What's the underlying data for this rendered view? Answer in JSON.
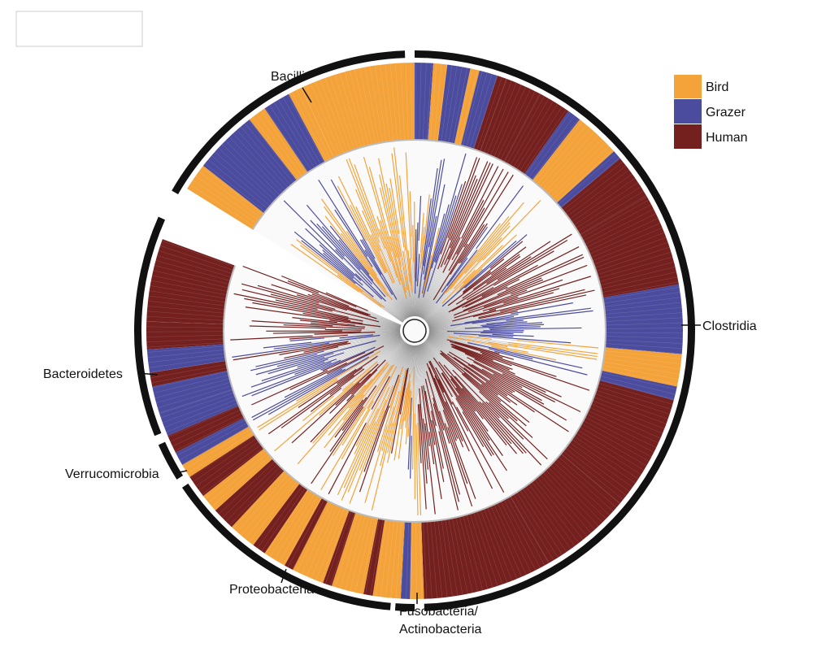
{
  "colors": {
    "bird": "#f4a33b",
    "grazer": "#4b4c9e",
    "human": "#74201f",
    "ring_black": "#111111",
    "tree_branch": "#222222"
  },
  "legend": [
    {
      "label": "Bird",
      "color": "#f4a33b"
    },
    {
      "label": "Grazer",
      "color": "#4b4c9e"
    },
    {
      "label": "Human",
      "color": "#74201f"
    }
  ],
  "clades": {
    "bacilli": "Bacilli",
    "clostridia": "Clostridia",
    "bacteroidetes": "Bacteroidetes",
    "verrucomicrobia": "Verrucomicrobia",
    "proteobacteria": "Proteobacteria",
    "fuso_line1": "Fusobacteria/",
    "fuso_line2": "Actinobacteria"
  }
}
